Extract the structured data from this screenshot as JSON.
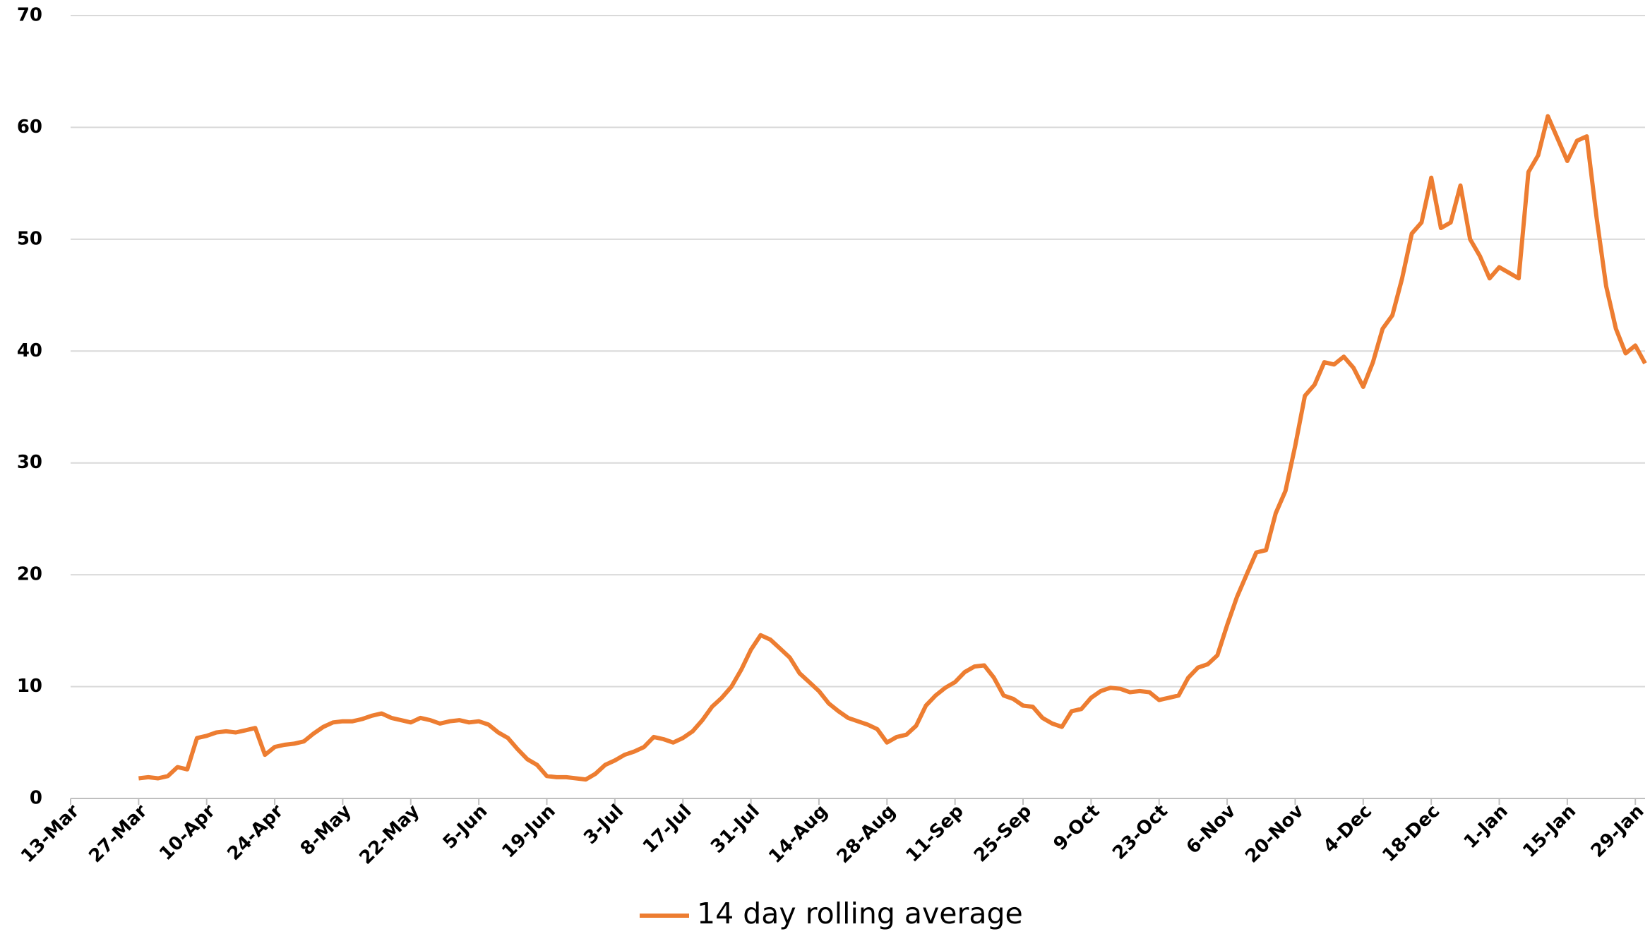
{
  "chart_data": {
    "type": "line",
    "x": [
      "27-Mar",
      "29-Mar",
      "31-Mar",
      "2-Apr",
      "4-Apr",
      "6-Apr",
      "8-Apr",
      "10-Apr",
      "12-Apr",
      "14-Apr",
      "16-Apr",
      "18-Apr",
      "20-Apr",
      "22-Apr",
      "24-Apr",
      "26-Apr",
      "28-Apr",
      "30-Apr",
      "2-May",
      "4-May",
      "6-May",
      "8-May",
      "10-May",
      "12-May",
      "14-May",
      "16-May",
      "18-May",
      "20-May",
      "22-May",
      "24-May",
      "26-May",
      "28-May",
      "30-May",
      "1-Jun",
      "3-Jun",
      "5-Jun",
      "7-Jun",
      "9-Jun",
      "11-Jun",
      "13-Jun",
      "15-Jun",
      "17-Jun",
      "19-Jun",
      "21-Jun",
      "23-Jun",
      "25-Jun",
      "27-Jun",
      "29-Jun",
      "1-Jul",
      "3-Jul",
      "5-Jul",
      "7-Jul",
      "9-Jul",
      "11-Jul",
      "13-Jul",
      "15-Jul",
      "17-Jul",
      "19-Jul",
      "21-Jul",
      "23-Jul",
      "25-Jul",
      "27-Jul",
      "29-Jul",
      "31-Jul",
      "2-Aug",
      "4-Aug",
      "6-Aug",
      "8-Aug",
      "10-Aug",
      "12-Aug",
      "14-Aug",
      "16-Aug",
      "18-Aug",
      "20-Aug",
      "22-Aug",
      "24-Aug",
      "26-Aug",
      "28-Aug",
      "30-Aug",
      "1-Sep",
      "3-Sep",
      "5-Sep",
      "7-Sep",
      "9-Sep",
      "11-Sep",
      "13-Sep",
      "15-Sep",
      "17-Sep",
      "19-Sep",
      "21-Sep",
      "23-Sep",
      "25-Sep",
      "27-Sep",
      "29-Sep",
      "1-Oct",
      "3-Oct",
      "5-Oct",
      "7-Oct",
      "9-Oct",
      "11-Oct",
      "13-Oct",
      "15-Oct",
      "17-Oct",
      "19-Oct",
      "21-Oct",
      "23-Oct",
      "25-Oct",
      "27-Oct",
      "29-Oct",
      "31-Oct",
      "2-Nov",
      "4-Nov",
      "6-Nov",
      "8-Nov",
      "10-Nov",
      "12-Nov",
      "14-Nov",
      "16-Nov",
      "18-Nov",
      "20-Nov",
      "22-Nov",
      "24-Nov",
      "26-Nov",
      "28-Nov",
      "30-Nov",
      "2-Dec",
      "4-Dec",
      "6-Dec",
      "8-Dec",
      "10-Dec",
      "12-Dec",
      "14-Dec",
      "16-Dec",
      "18-Dec",
      "20-Dec",
      "22-Dec",
      "24-Dec",
      "26-Dec",
      "28-Dec",
      "30-Dec",
      "1-Jan",
      "3-Jan",
      "5-Jan",
      "7-Jan",
      "9-Jan",
      "11-Jan",
      "13-Jan",
      "15-Jan",
      "17-Jan",
      "19-Jan",
      "21-Jan",
      "23-Jan",
      "25-Jan",
      "27-Jan",
      "29-Jan",
      "31-Jan"
    ],
    "series": [
      {
        "name": "14 day rolling average",
        "color": "#ed7d31",
        "values": [
          1.8,
          1.9,
          1.8,
          2.0,
          2.8,
          2.6,
          5.4,
          5.6,
          5.9,
          6.0,
          5.9,
          6.1,
          6.3,
          3.9,
          4.6,
          4.8,
          4.9,
          5.1,
          5.8,
          6.4,
          6.8,
          6.9,
          6.9,
          7.1,
          7.4,
          7.6,
          7.2,
          7.0,
          6.8,
          7.2,
          7.0,
          6.7,
          6.9,
          7.0,
          6.8,
          6.9,
          6.6,
          5.9,
          5.4,
          4.4,
          3.5,
          3.0,
          2.0,
          1.9,
          1.9,
          1.8,
          1.7,
          2.2,
          3.0,
          3.4,
          3.9,
          4.2,
          4.6,
          5.5,
          5.3,
          5.0,
          5.4,
          6.0,
          7.0,
          8.2,
          9.0,
          10.0,
          11.5,
          13.3,
          14.6,
          14.2,
          13.4,
          12.6,
          11.2,
          10.4,
          9.6,
          8.5,
          7.8,
          7.2,
          6.9,
          6.6,
          6.2,
          5.0,
          5.5,
          5.7,
          6.5,
          8.3,
          9.2,
          9.9,
          10.4,
          11.3,
          11.8,
          11.9,
          10.8,
          9.2,
          8.9,
          8.3,
          8.2,
          7.2,
          6.7,
          6.4,
          7.8,
          8.0,
          9.0,
          9.6,
          9.9,
          9.8,
          9.5,
          9.6,
          9.5,
          8.8,
          9.0,
          9.2,
          10.8,
          11.7,
          12.0,
          12.8,
          15.5,
          18.0,
          20.0,
          22.0,
          22.2,
          25.5,
          27.5,
          31.5,
          36.0,
          37.0,
          39.0,
          38.8,
          39.5,
          38.5,
          36.8,
          39.0,
          42.0,
          43.2,
          46.5,
          50.5,
          51.5,
          55.5,
          51.0,
          51.5,
          54.8,
          50.0,
          48.5,
          46.5,
          47.5,
          47.0,
          46.5,
          56.0,
          57.5,
          61.0,
          59.0,
          57.0,
          58.8,
          59.2,
          52.0,
          45.8,
          42.0,
          39.8,
          40.5,
          38.9
        ]
      }
    ],
    "xticks": [
      "13-Mar",
      "27-Mar",
      "10-Apr",
      "24-Apr",
      "8-May",
      "22-May",
      "5-Jun",
      "19-Jun",
      "3-Jul",
      "17-Jul",
      "31-Jul",
      "14-Aug",
      "28-Aug",
      "11-Sep",
      "25-Sep",
      "9-Oct",
      "23-Oct",
      "6-Nov",
      "20-Nov",
      "4-Dec",
      "18-Dec",
      "1-Jan",
      "15-Jan",
      "29-Jan"
    ],
    "ylim": [
      0,
      70
    ],
    "yticks": [
      0,
      10,
      20,
      30,
      40,
      50,
      60,
      70
    ],
    "grid": true,
    "legend": "bottom"
  }
}
